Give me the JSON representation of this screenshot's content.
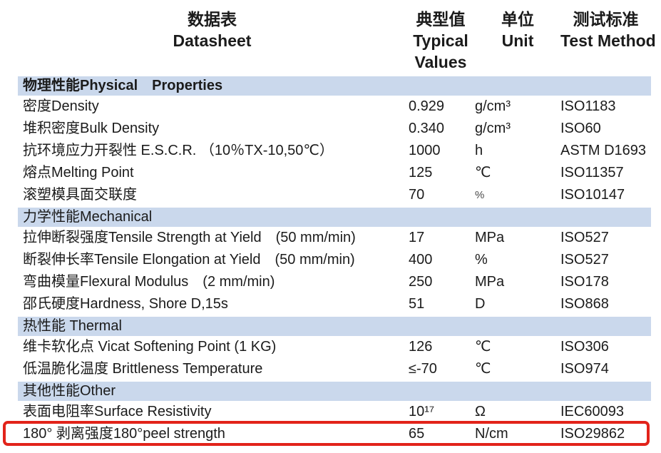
{
  "colors": {
    "band_bg": "#cad8ec",
    "text": "#1b1b1b",
    "highlight_border": "#e2231a"
  },
  "header": {
    "datasheet": {
      "zh": "数据表",
      "en": "Datasheet"
    },
    "typical": {
      "zh": "典型值",
      "en_line1": "Typical",
      "en_line2": "Values"
    },
    "unit": {
      "zh": "单位",
      "en": "Unit"
    },
    "test": {
      "zh": "测试标准",
      "en": "Test Method"
    }
  },
  "sections": [
    {
      "title": "物理性能Physical　Properties",
      "bold": true,
      "rows": [
        {
          "name": "密度Density",
          "value": "0.929",
          "unit": "g/cm³",
          "test": "ISO1183"
        },
        {
          "name": "堆积密度Bulk Density",
          "value": "0.340",
          "unit": "g/cm³",
          "test": "ISO60"
        },
        {
          "name": "抗环境应力开裂性 E.S.C.R. （10％TX-10,50℃）",
          "value": "1000",
          "unit": "h",
          "test": "ASTM D1693"
        },
        {
          "name": "熔点Melting Point",
          "value": "125",
          "unit": "℃",
          "test": "ISO11357"
        },
        {
          "name": "滚塑模具面交联度",
          "value": "70",
          "unit": "%",
          "unit_small": true,
          "test": "ISO10147"
        }
      ]
    },
    {
      "title": "力学性能Mechanical",
      "bold": false,
      "rows": [
        {
          "name": "拉伸断裂强度Tensile Strength at Yield　(50 mm/min)",
          "value": "17",
          "unit": "MPa",
          "test": "ISO527"
        },
        {
          "name": "断裂伸长率Tensile Elongation at Yield　(50 mm/min)",
          "value": "400",
          "unit": "%",
          "test": "ISO527"
        },
        {
          "name": "弯曲模量Flexural Modulus　(2 mm/min)",
          "value": "250",
          "unit": "MPa",
          "test": "ISO178"
        },
        {
          "name": "邵氏硬度Hardness, Shore D,15s",
          "value": "51",
          "unit": "D",
          "test": "ISO868"
        }
      ]
    },
    {
      "title": "热性能 Thermal",
      "bold": false,
      "rows": [
        {
          "name": "维卡软化点 Vicat Softening Point (1 KG)",
          "value": "126",
          "unit": "℃",
          "test": "ISO306"
        },
        {
          "name": "低温脆化温度 Brittleness Temperature",
          "value": "≤-70",
          "unit": "℃",
          "test": "ISO974"
        }
      ]
    },
    {
      "title": "其他性能Other",
      "bold": false,
      "rows": [
        {
          "name": "表面电阻率Surface Resistivity",
          "value": "10¹⁷",
          "unit": "Ω",
          "test": "IEC60093"
        },
        {
          "name": "180° 剥离强度180°peel strength",
          "value": "65",
          "unit": "N/cm",
          "test": "ISO29862",
          "highlighted": true
        }
      ]
    }
  ]
}
